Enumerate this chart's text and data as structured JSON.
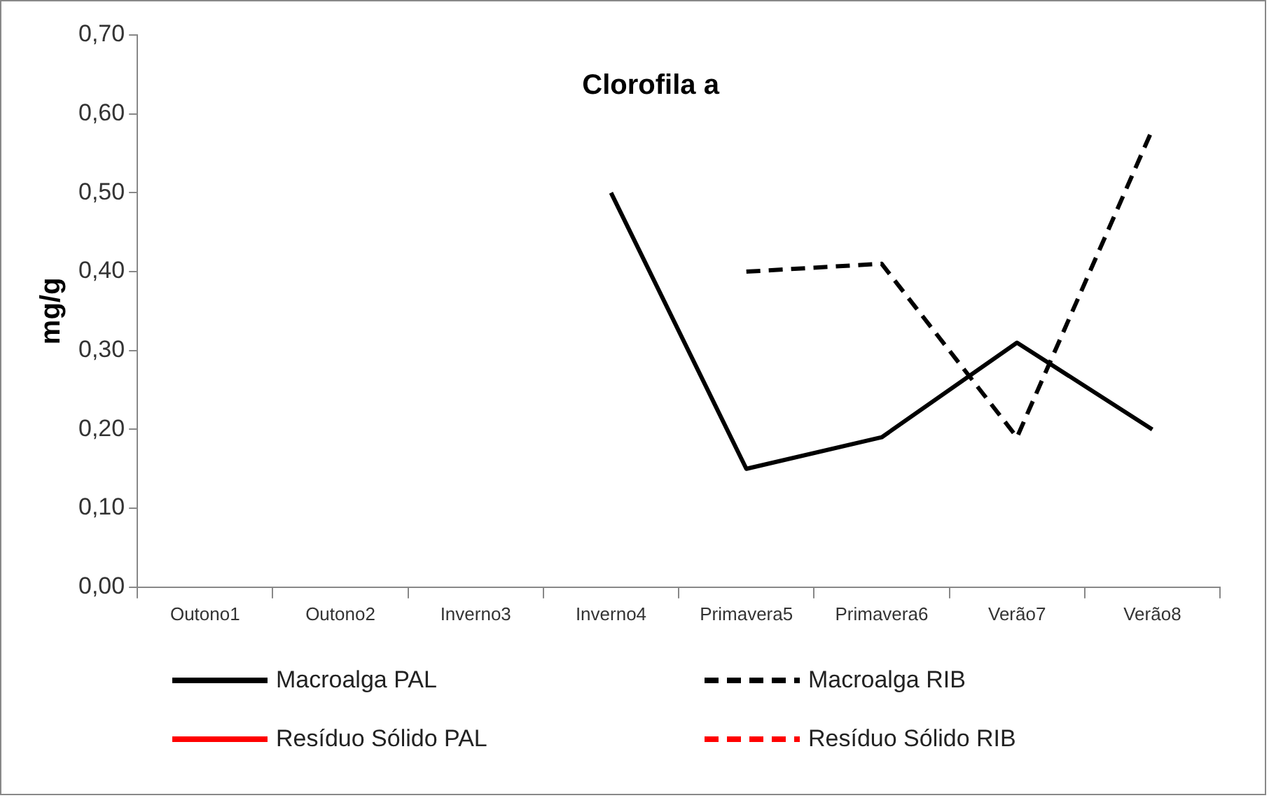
{
  "chart_data": {
    "type": "line",
    "title": "Clorofila a",
    "ylabel": "mg/g",
    "categories": [
      "Outono1",
      "Outono2",
      "Inverno3",
      "Inverno4",
      "Primavera5",
      "Primavera6",
      "Verão7",
      "Verão8"
    ],
    "series": [
      {
        "name": "Macroalga PAL",
        "color": "#000000",
        "line_style": "solid",
        "values": [
          null,
          null,
          null,
          0.5,
          0.15,
          0.19,
          0.31,
          0.2
        ]
      },
      {
        "name": "Macroalga RIB",
        "color": "#000000",
        "line_style": "dashed",
        "values": [
          null,
          null,
          null,
          null,
          0.4,
          0.41,
          0.19,
          0.58
        ]
      },
      {
        "name": "Resíduo Sólido PAL",
        "color": "#ff0000",
        "line_style": "solid",
        "values": [
          null,
          null,
          null,
          null,
          null,
          null,
          null,
          null
        ]
      },
      {
        "name": "Resíduo Sólido RIB",
        "color": "#ff0000",
        "line_style": "dashed",
        "values": [
          null,
          null,
          null,
          null,
          null,
          null,
          null,
          null
        ]
      }
    ],
    "ylim": [
      0,
      0.7
    ],
    "yticks": [
      {
        "value": 0,
        "label": "0,00"
      },
      {
        "value": 0.1,
        "label": "0,10"
      },
      {
        "value": 0.2,
        "label": "0,20"
      },
      {
        "value": 0.3,
        "label": "0,30"
      },
      {
        "value": 0.4,
        "label": "0,40"
      },
      {
        "value": 0.5,
        "label": "0,50"
      },
      {
        "value": 0.6,
        "label": "0,60"
      },
      {
        "value": 0.7,
        "label": "0,70"
      }
    ],
    "grid": false,
    "legend": "bottom",
    "marker": "none"
  }
}
